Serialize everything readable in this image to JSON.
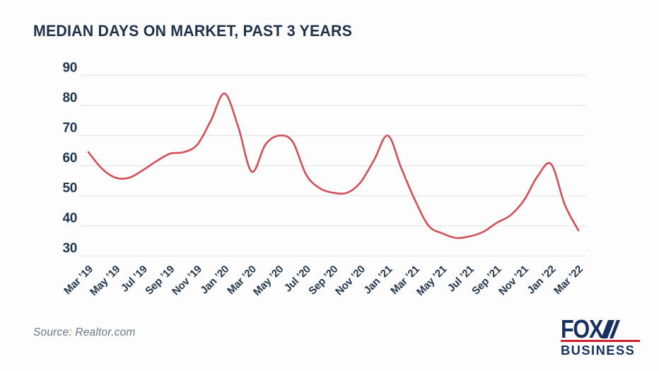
{
  "header": {
    "title": "MEDIAN DAYS ON MARKET, PAST 3 YEARS"
  },
  "footer": {
    "source": "Source: Realtor.com",
    "logo": {
      "fox": "FOX",
      "business": "BUSINESS"
    }
  },
  "colors": {
    "background": "#fdfdfd",
    "title": "#1e3147",
    "axis_label": "#22374d",
    "gridline": "#e9e9ec",
    "line": "#d04f59",
    "source_text": "#6b7683",
    "logo_navy": "#17315f",
    "logo_red": "#ce2132"
  },
  "chart_data": {
    "type": "line",
    "title": "MEDIAN DAYS ON MARKET, PAST 3 YEARS",
    "xlabel": "",
    "ylabel": "",
    "ylim": [
      30,
      90
    ],
    "yticks": [
      30,
      40,
      50,
      60,
      70,
      80,
      90
    ],
    "grid": "horizontal",
    "legend": "none",
    "line_color": "#d04f59",
    "x": [
      "Mar ’19",
      "Apr ’19",
      "May ’19",
      "Jun ’19",
      "Jul ’19",
      "Aug ’19",
      "Sep ’19",
      "Oct ’19",
      "Nov ’19",
      "Dec ’19",
      "Jan ’20",
      "Feb ’20",
      "Mar ’20",
      "Apr ’20",
      "May ’20",
      "Jun ’20",
      "Jul ’20",
      "Aug ’20",
      "Sep ’20",
      "Oct ’20",
      "Nov ’20",
      "Dec ’20",
      "Jan ’21",
      "Feb ’21",
      "Mar ’21",
      "Apr ’21",
      "May ’21",
      "Jun ’21",
      "Jul ’21",
      "Aug ’21",
      "Sep ’21",
      "Oct ’21",
      "Nov ’21",
      "Dec ’21",
      "Jan ’22",
      "Feb ’22",
      "Mar ’22"
    ],
    "values": [
      64.5,
      59,
      56,
      56,
      58.5,
      61.5,
      64,
      64.5,
      67,
      75,
      84,
      73,
      58,
      67,
      70,
      68,
      57,
      52.5,
      51,
      51,
      54.5,
      62,
      70,
      59,
      48.5,
      40,
      37.5,
      36,
      36.5,
      38,
      41,
      43.5,
      48.5,
      56.5,
      60.5,
      47,
      38.5
    ],
    "x_tick_step": 2,
    "x_tick_labels": [
      "Mar ’19",
      "May ’19",
      "Jul ’19",
      "Sep ’19",
      "Nov ’19",
      "Jan ’20",
      "Mar ’20",
      "May ’20",
      "Jul ’20",
      "Sep ’20",
      "Nov ’20",
      "Jan ’21",
      "Mar ’21",
      "May ’21",
      "Jul ’21",
      "Sep ’21",
      "Nov ’21",
      "Jan ’22",
      "Mar ’22"
    ]
  }
}
